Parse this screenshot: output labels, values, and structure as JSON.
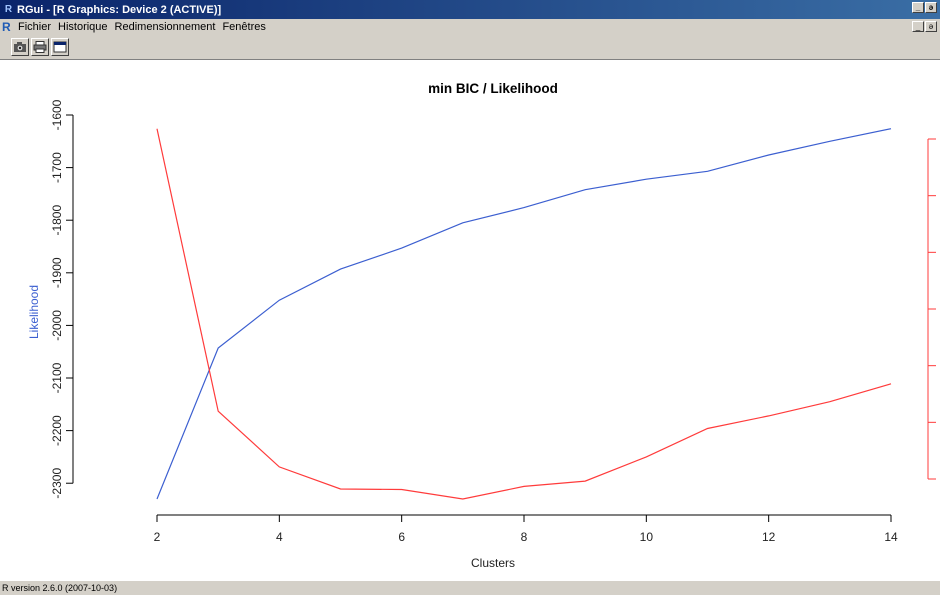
{
  "window": {
    "title": "RGui - [R Graphics: Device 2 (ACTIVE)]",
    "app_logo": "R",
    "controls": [
      "_",
      "ə"
    ]
  },
  "menubar": {
    "items": [
      "Fichier",
      "Historique",
      "Redimensionnement",
      "Fenêtres"
    ]
  },
  "toolbar": {
    "buttons": [
      {
        "icon": "camera-icon"
      },
      {
        "icon": "printer-icon"
      },
      {
        "icon": "window-icon"
      }
    ]
  },
  "status": {
    "text": "R version 2.6.0 (2007-10-03)"
  },
  "colors": {
    "likelihood": "#3c5fd0",
    "bic": "#ff3b3b",
    "axis": "#000000"
  },
  "chart_data": {
    "type": "line",
    "title": "min BIC / Likelihood",
    "xlabel": "Clusters",
    "ylabel": "Likelihood",
    "xlim": [
      2,
      14
    ],
    "ylim": [
      -2330,
      -1600
    ],
    "x_ticks": [
      2,
      4,
      6,
      8,
      10,
      12,
      14
    ],
    "y_ticks": [
      -2300,
      -2200,
      -2100,
      -2000,
      -1900,
      -1800,
      -1700,
      -1600
    ],
    "x": [
      2,
      3,
      4,
      5,
      6,
      7,
      8,
      9,
      10,
      11,
      12,
      13,
      14
    ],
    "series": [
      {
        "name": "Likelihood",
        "axis": "left",
        "values": [
          -2330,
          -2043,
          -1952,
          -1893,
          -1853,
          -1805,
          -1776,
          -1742,
          -1722,
          -1707,
          -1676,
          -1650,
          -1626
        ]
      },
      {
        "axis": "right",
        "values_scaled_to_left_axis": [
          -1626,
          -2163,
          -2269,
          -2311,
          -2312,
          -2330,
          -2306,
          -2296,
          -2250,
          -2196,
          -2172,
          -2145,
          -2111
        ]
      }
    ],
    "right_axis": {
      "ticks_count": 7,
      "tick_labels": []
    },
    "grid": false
  }
}
